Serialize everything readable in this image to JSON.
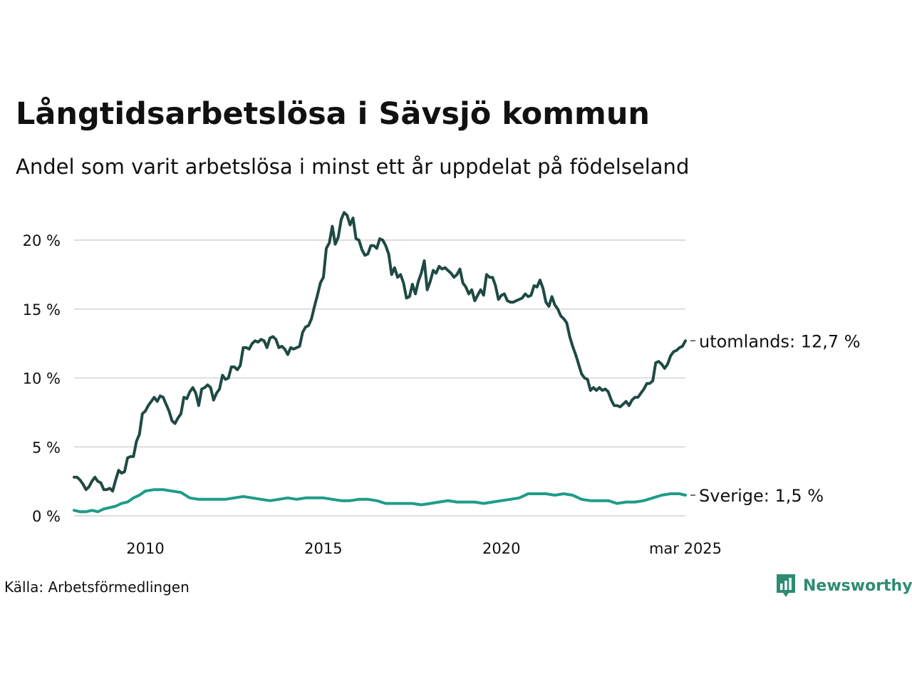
{
  "title": "Långtidsarbetslösa i Sävsjö kommun",
  "subtitle": "Andel som varit arbetslösa i minst ett år uppdelat på födelseland",
  "source": "Källa: Arbetsförmedlingen",
  "logo": {
    "text": "Newsworthy",
    "icon": "newsworthy-bar-chart-icon",
    "color": "#2e8b74"
  },
  "chart_data": {
    "type": "line",
    "ylim": [
      0,
      22
    ],
    "yticks": [
      0,
      5,
      10,
      15,
      20
    ],
    "ytick_labels": [
      "0 %",
      "5 %",
      "10 %",
      "15 %",
      "20 %"
    ],
    "xlim": [
      "2008-01",
      "2025-03"
    ],
    "xticks": [
      "2010-01",
      "2015-01",
      "2020-01",
      "2025-03"
    ],
    "xtick_labels": [
      "2010",
      "2015",
      "2020",
      "mar 2025"
    ],
    "grid": true,
    "legend": "direct labels at line ends (right)",
    "series": [
      {
        "name": "utomlands",
        "end_label": "utomlands: 12,7 %",
        "color": "#1f4a44",
        "points": [
          [
            "2008-01",
            2.8
          ],
          [
            "2008-02",
            2.8
          ],
          [
            "2008-03",
            2.6
          ],
          [
            "2008-04",
            2.3
          ],
          [
            "2008-05",
            1.9
          ],
          [
            "2008-06",
            2.1
          ],
          [
            "2008-07",
            2.5
          ],
          [
            "2008-08",
            2.8
          ],
          [
            "2008-09",
            2.5
          ],
          [
            "2008-10",
            2.4
          ],
          [
            "2008-11",
            1.9
          ],
          [
            "2008-12",
            1.9
          ],
          [
            "2009-01",
            2.0
          ],
          [
            "2009-02",
            1.8
          ],
          [
            "2009-03",
            2.6
          ],
          [
            "2009-04",
            3.3
          ],
          [
            "2009-05",
            3.1
          ],
          [
            "2009-06",
            3.2
          ],
          [
            "2009-07",
            4.2
          ],
          [
            "2009-08",
            4.3
          ],
          [
            "2009-09",
            4.3
          ],
          [
            "2009-10",
            5.4
          ],
          [
            "2009-11",
            5.9
          ],
          [
            "2009-12",
            7.4
          ],
          [
            "2010-01",
            7.6
          ],
          [
            "2010-02",
            8.0
          ],
          [
            "2010-03",
            8.3
          ],
          [
            "2010-04",
            8.6
          ],
          [
            "2010-05",
            8.3
          ],
          [
            "2010-06",
            8.7
          ],
          [
            "2010-07",
            8.6
          ],
          [
            "2010-08",
            8.1
          ],
          [
            "2010-09",
            7.6
          ],
          [
            "2010-10",
            6.9
          ],
          [
            "2010-11",
            6.7
          ],
          [
            "2010-12",
            7.1
          ],
          [
            "2011-01",
            7.4
          ],
          [
            "2011-02",
            8.6
          ],
          [
            "2011-03",
            8.5
          ],
          [
            "2011-04",
            9.0
          ],
          [
            "2011-05",
            9.3
          ],
          [
            "2011-06",
            8.9
          ],
          [
            "2011-07",
            8.0
          ],
          [
            "2011-08",
            9.2
          ],
          [
            "2011-09",
            9.3
          ],
          [
            "2011-10",
            9.5
          ],
          [
            "2011-11",
            9.3
          ],
          [
            "2011-12",
            8.4
          ],
          [
            "2012-01",
            8.9
          ],
          [
            "2012-02",
            9.2
          ],
          [
            "2012-03",
            10.2
          ],
          [
            "2012-04",
            9.9
          ],
          [
            "2012-05",
            10.0
          ],
          [
            "2012-06",
            10.8
          ],
          [
            "2012-07",
            10.8
          ],
          [
            "2012-08",
            10.6
          ],
          [
            "2012-09",
            10.9
          ],
          [
            "2012-10",
            12.2
          ],
          [
            "2012-11",
            12.2
          ],
          [
            "2012-12",
            12.1
          ],
          [
            "2013-01",
            12.5
          ],
          [
            "2013-02",
            12.7
          ],
          [
            "2013-03",
            12.6
          ],
          [
            "2013-04",
            12.8
          ],
          [
            "2013-05",
            12.7
          ],
          [
            "2013-06",
            12.2
          ],
          [
            "2013-07",
            12.9
          ],
          [
            "2013-08",
            13.0
          ],
          [
            "2013-09",
            12.8
          ],
          [
            "2013-10",
            12.2
          ],
          [
            "2013-11",
            12.3
          ],
          [
            "2013-12",
            12.1
          ],
          [
            "2014-01",
            11.7
          ],
          [
            "2014-02",
            12.2
          ],
          [
            "2014-03",
            12.1
          ],
          [
            "2014-04",
            12.2
          ],
          [
            "2014-05",
            12.3
          ],
          [
            "2014-06",
            13.3
          ],
          [
            "2014-07",
            13.7
          ],
          [
            "2014-08",
            13.8
          ],
          [
            "2014-09",
            14.3
          ],
          [
            "2014-10",
            15.2
          ],
          [
            "2014-11",
            16.0
          ],
          [
            "2014-12",
            16.9
          ],
          [
            "2015-01",
            17.3
          ],
          [
            "2015-02",
            19.4
          ],
          [
            "2015-03",
            19.8
          ],
          [
            "2015-04",
            21.0
          ],
          [
            "2015-05",
            19.7
          ],
          [
            "2015-06",
            20.2
          ],
          [
            "2015-07",
            21.5
          ],
          [
            "2015-08",
            22.0
          ],
          [
            "2015-09",
            21.8
          ],
          [
            "2015-10",
            21.1
          ],
          [
            "2015-11",
            21.6
          ],
          [
            "2015-12",
            20.1
          ],
          [
            "2016-01",
            20.0
          ],
          [
            "2016-02",
            19.3
          ],
          [
            "2016-03",
            18.9
          ],
          [
            "2016-04",
            19.0
          ],
          [
            "2016-05",
            19.6
          ],
          [
            "2016-06",
            19.6
          ],
          [
            "2016-07",
            19.4
          ],
          [
            "2016-08",
            20.1
          ],
          [
            "2016-09",
            20.0
          ],
          [
            "2016-10",
            19.6
          ],
          [
            "2016-11",
            19.0
          ],
          [
            "2016-12",
            17.5
          ],
          [
            "2017-01",
            18.0
          ],
          [
            "2017-02",
            17.3
          ],
          [
            "2017-03",
            17.5
          ],
          [
            "2017-04",
            16.9
          ],
          [
            "2017-05",
            15.8
          ],
          [
            "2017-06",
            15.9
          ],
          [
            "2017-07",
            16.8
          ],
          [
            "2017-08",
            16.1
          ],
          [
            "2017-09",
            17.0
          ],
          [
            "2017-10",
            17.6
          ],
          [
            "2017-11",
            18.5
          ],
          [
            "2017-12",
            16.4
          ],
          [
            "2018-01",
            17.0
          ],
          [
            "2018-02",
            17.8
          ],
          [
            "2018-03",
            17.6
          ],
          [
            "2018-04",
            18.1
          ],
          [
            "2018-05",
            17.9
          ],
          [
            "2018-06",
            18.0
          ],
          [
            "2018-07",
            17.8
          ],
          [
            "2018-08",
            17.6
          ],
          [
            "2018-09",
            17.3
          ],
          [
            "2018-10",
            17.5
          ],
          [
            "2018-11",
            17.9
          ],
          [
            "2018-12",
            16.9
          ],
          [
            "2019-01",
            16.6
          ],
          [
            "2019-02",
            16.1
          ],
          [
            "2019-03",
            16.4
          ],
          [
            "2019-04",
            15.6
          ],
          [
            "2019-05",
            16.0
          ],
          [
            "2019-06",
            16.4
          ],
          [
            "2019-07",
            16.0
          ],
          [
            "2019-08",
            17.5
          ],
          [
            "2019-09",
            17.3
          ],
          [
            "2019-10",
            17.3
          ],
          [
            "2019-11",
            16.7
          ],
          [
            "2019-12",
            15.7
          ],
          [
            "2020-01",
            16.0
          ],
          [
            "2020-02",
            16.1
          ],
          [
            "2020-03",
            15.6
          ],
          [
            "2020-04",
            15.5
          ],
          [
            "2020-05",
            15.5
          ],
          [
            "2020-06",
            15.6
          ],
          [
            "2020-07",
            15.7
          ],
          [
            "2020-08",
            15.8
          ],
          [
            "2020-09",
            16.1
          ],
          [
            "2020-10",
            15.9
          ],
          [
            "2020-11",
            16.0
          ],
          [
            "2020-12",
            16.7
          ],
          [
            "2021-01",
            16.6
          ],
          [
            "2021-02",
            17.1
          ],
          [
            "2021-03",
            16.5
          ],
          [
            "2021-04",
            15.5
          ],
          [
            "2021-05",
            15.2
          ],
          [
            "2021-06",
            15.9
          ],
          [
            "2021-07",
            15.3
          ],
          [
            "2021-08",
            15.0
          ],
          [
            "2021-09",
            14.5
          ],
          [
            "2021-10",
            14.3
          ],
          [
            "2021-11",
            14.0
          ],
          [
            "2021-12",
            13.0
          ],
          [
            "2022-01",
            12.3
          ],
          [
            "2022-02",
            11.7
          ],
          [
            "2022-03",
            11.0
          ],
          [
            "2022-04",
            10.3
          ],
          [
            "2022-05",
            10.0
          ],
          [
            "2022-06",
            9.9
          ],
          [
            "2022-07",
            9.1
          ],
          [
            "2022-08",
            9.3
          ],
          [
            "2022-09",
            9.1
          ],
          [
            "2022-10",
            9.3
          ],
          [
            "2022-11",
            9.1
          ],
          [
            "2022-12",
            9.2
          ],
          [
            "2023-01",
            9.0
          ],
          [
            "2023-02",
            8.4
          ],
          [
            "2023-03",
            8.0
          ],
          [
            "2023-04",
            8.0
          ],
          [
            "2023-05",
            7.9
          ],
          [
            "2023-06",
            8.1
          ],
          [
            "2023-07",
            8.3
          ],
          [
            "2023-08",
            8.0
          ],
          [
            "2023-09",
            8.4
          ],
          [
            "2023-10",
            8.6
          ],
          [
            "2023-11",
            8.6
          ],
          [
            "2023-12",
            8.9
          ],
          [
            "2024-01",
            9.2
          ],
          [
            "2024-02",
            9.6
          ],
          [
            "2024-03",
            9.6
          ],
          [
            "2024-04",
            9.8
          ],
          [
            "2024-05",
            11.1
          ],
          [
            "2024-06",
            11.2
          ],
          [
            "2024-07",
            11.0
          ],
          [
            "2024-08",
            10.7
          ],
          [
            "2024-09",
            11.0
          ],
          [
            "2024-10",
            11.6
          ],
          [
            "2024-11",
            11.9
          ],
          [
            "2024-12",
            12.0
          ],
          [
            "2025-01",
            12.2
          ],
          [
            "2025-02",
            12.3
          ],
          [
            "2025-03",
            12.7
          ]
        ]
      },
      {
        "name": "Sverige",
        "end_label": "Sverige:  1,5 %",
        "color": "#1e9c88",
        "points": [
          [
            "2008-01",
            0.4
          ],
          [
            "2008-03",
            0.3
          ],
          [
            "2008-05",
            0.3
          ],
          [
            "2008-07",
            0.4
          ],
          [
            "2008-09",
            0.3
          ],
          [
            "2008-11",
            0.5
          ],
          [
            "2009-01",
            0.6
          ],
          [
            "2009-03",
            0.7
          ],
          [
            "2009-05",
            0.9
          ],
          [
            "2009-07",
            1.0
          ],
          [
            "2009-09",
            1.3
          ],
          [
            "2009-11",
            1.5
          ],
          [
            "2010-01",
            1.8
          ],
          [
            "2010-04",
            1.9
          ],
          [
            "2010-07",
            1.9
          ],
          [
            "2010-10",
            1.8
          ],
          [
            "2011-01",
            1.7
          ],
          [
            "2011-04",
            1.3
          ],
          [
            "2011-07",
            1.2
          ],
          [
            "2011-10",
            1.2
          ],
          [
            "2012-01",
            1.2
          ],
          [
            "2012-04",
            1.2
          ],
          [
            "2012-07",
            1.3
          ],
          [
            "2012-10",
            1.4
          ],
          [
            "2013-01",
            1.3
          ],
          [
            "2013-04",
            1.2
          ],
          [
            "2013-07",
            1.1
          ],
          [
            "2013-10",
            1.2
          ],
          [
            "2014-01",
            1.3
          ],
          [
            "2014-04",
            1.2
          ],
          [
            "2014-07",
            1.3
          ],
          [
            "2014-10",
            1.3
          ],
          [
            "2015-01",
            1.3
          ],
          [
            "2015-04",
            1.2
          ],
          [
            "2015-07",
            1.1
          ],
          [
            "2015-10",
            1.1
          ],
          [
            "2016-01",
            1.2
          ],
          [
            "2016-04",
            1.2
          ],
          [
            "2016-07",
            1.1
          ],
          [
            "2016-10",
            0.9
          ],
          [
            "2017-01",
            0.9
          ],
          [
            "2017-04",
            0.9
          ],
          [
            "2017-07",
            0.9
          ],
          [
            "2017-10",
            0.8
          ],
          [
            "2018-01",
            0.9
          ],
          [
            "2018-04",
            1.0
          ],
          [
            "2018-07",
            1.1
          ],
          [
            "2018-10",
            1.0
          ],
          [
            "2019-01",
            1.0
          ],
          [
            "2019-04",
            1.0
          ],
          [
            "2019-07",
            0.9
          ],
          [
            "2019-10",
            1.0
          ],
          [
            "2020-01",
            1.1
          ],
          [
            "2020-04",
            1.2
          ],
          [
            "2020-07",
            1.3
          ],
          [
            "2020-10",
            1.6
          ],
          [
            "2021-01",
            1.6
          ],
          [
            "2021-04",
            1.6
          ],
          [
            "2021-07",
            1.5
          ],
          [
            "2021-10",
            1.6
          ],
          [
            "2022-01",
            1.5
          ],
          [
            "2022-04",
            1.2
          ],
          [
            "2022-07",
            1.1
          ],
          [
            "2022-10",
            1.1
          ],
          [
            "2023-01",
            1.1
          ],
          [
            "2023-04",
            0.9
          ],
          [
            "2023-07",
            1.0
          ],
          [
            "2023-10",
            1.0
          ],
          [
            "2024-01",
            1.1
          ],
          [
            "2024-04",
            1.3
          ],
          [
            "2024-07",
            1.5
          ],
          [
            "2024-10",
            1.6
          ],
          [
            "2025-01",
            1.6
          ],
          [
            "2025-03",
            1.5
          ]
        ]
      }
    ]
  }
}
